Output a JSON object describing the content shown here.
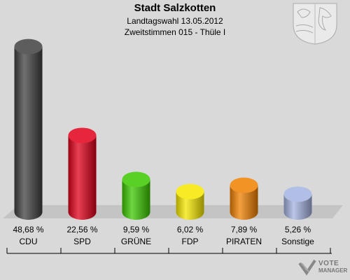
{
  "header": {
    "title": "Stadt Salzkotten",
    "subtitle": "Landtagswahl 13.05.2012",
    "subtitle2": "Zweitstimmen 015 - Thüle I"
  },
  "logo": {
    "line1": "VOTE",
    "line2": "MANAGER"
  },
  "chart_data": {
    "type": "bar",
    "title": "Stadt Salzkotten",
    "subtitle": "Landtagswahl 13.05.2012 · Zweitstimmen 015 - Thüle I",
    "categories": [
      "CDU",
      "SPD",
      "GRÜNE",
      "FDP",
      "PIRATEN",
      "Sonstige"
    ],
    "values": [
      48.68,
      22.56,
      9.59,
      6.02,
      7.89,
      5.26
    ],
    "value_labels": [
      "48,68 %",
      "22,56 %",
      "9,59 %",
      "6,02 %",
      "7,89 %",
      "5,26 %"
    ],
    "colors": [
      "#404040",
      "#e0001a",
      "#3cc800",
      "#f5e800",
      "#f08000",
      "#a3b2e0"
    ],
    "ylim": [
      0,
      50
    ],
    "grid": false,
    "legend": "none"
  }
}
